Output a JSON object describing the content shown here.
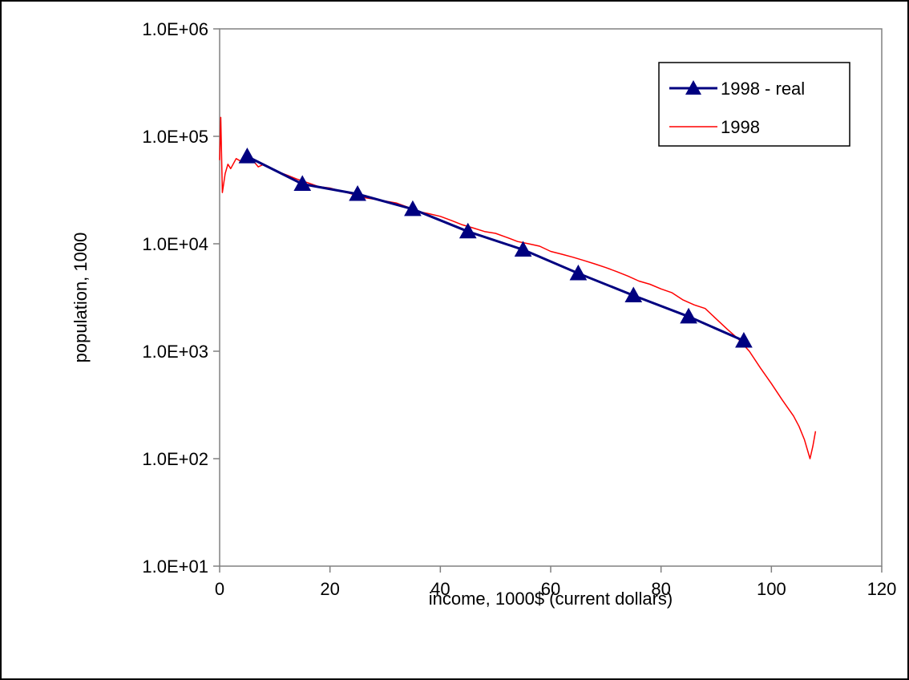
{
  "chart_data": {
    "type": "line",
    "xlabel": "income, 1000$ (current dollars)",
    "ylabel": "population, 1000",
    "xlim": [
      0,
      120
    ],
    "ylim": [
      10,
      1000000
    ],
    "yscale": "log",
    "x_ticks": [
      "0",
      "20",
      "40",
      "60",
      "80",
      "100",
      "120"
    ],
    "x_tick_values": [
      0,
      20,
      40,
      60,
      80,
      100,
      120
    ],
    "y_ticks": [
      "1.0E+01",
      "1.0E+02",
      "1.0E+03",
      "1.0E+04",
      "1.0E+05",
      "1.0E+06"
    ],
    "y_tick_values": [
      10,
      100,
      1000,
      10000,
      100000,
      1000000
    ],
    "grid": false,
    "legend_position": "top-right",
    "series": [
      {
        "name": "1998 - real",
        "color": "#000080",
        "marker": "triangle",
        "x": [
          5,
          15,
          25,
          35,
          45,
          55,
          65,
          75,
          85,
          95
        ],
        "y": [
          65000,
          36000,
          29000,
          21000,
          13000,
          8800,
          5300,
          3300,
          2100,
          1250
        ]
      },
      {
        "name": "1998",
        "color": "#ff0000",
        "marker": "none",
        "x": [
          0,
          0.2,
          0.5,
          1,
          1.5,
          2,
          3,
          4,
          5,
          6,
          7,
          8,
          10,
          12,
          14,
          16,
          18,
          20,
          22,
          24,
          26,
          28,
          30,
          32,
          34,
          36,
          38,
          40,
          42,
          44,
          46,
          48,
          50,
          52,
          54,
          56,
          58,
          60,
          62,
          64,
          66,
          68,
          70,
          72,
          74,
          76,
          78,
          80,
          82,
          84,
          86,
          88,
          90,
          92,
          94,
          96,
          98,
          100,
          102,
          104,
          105,
          106,
          107,
          107.5,
          108
        ],
        "y": [
          60000,
          150000,
          30000,
          45000,
          55000,
          50000,
          62000,
          58000,
          65000,
          60000,
          52000,
          55000,
          48000,
          44000,
          40000,
          37000,
          34000,
          33000,
          31000,
          29000,
          27000,
          26000,
          25000,
          24000,
          22000,
          20000,
          19000,
          18000,
          16500,
          15000,
          14000,
          13000,
          12500,
          11500,
          10500,
          10000,
          9500,
          8500,
          8000,
          7500,
          7000,
          6500,
          6000,
          5500,
          5000,
          4500,
          4200,
          3800,
          3500,
          3000,
          2700,
          2500,
          2000,
          1600,
          1300,
          1000,
          700,
          500,
          350,
          250,
          200,
          150,
          100,
          130,
          180
        ]
      }
    ]
  }
}
